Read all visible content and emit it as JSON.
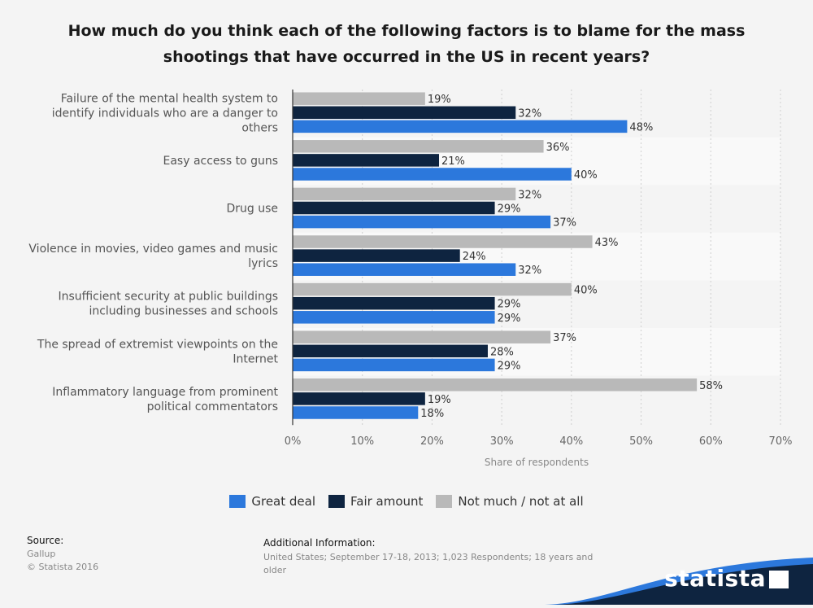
{
  "title": "How much do you think each of the following factors is to blame for the mass shootings that have occurred in the US in recent years?",
  "chart_data": {
    "type": "bar",
    "orientation": "horizontal",
    "categories": [
      "Failure of the mental health system to identify individuals who are a danger to others",
      "Easy access to guns",
      "Drug use",
      "Violence in movies, video games and music lyrics",
      "Insufficient security at public buildings including businesses and schools",
      "The spread of extremist viewpoints on the Internet",
      "Inflammatory language from prominent political commentators"
    ],
    "category_lines": [
      [
        "Failure of the mental health system to",
        "identify individuals who are a danger to",
        "others"
      ],
      [
        "Easy access to guns"
      ],
      [
        "Drug use"
      ],
      [
        "Violence in movies, video games and music",
        "lyrics"
      ],
      [
        "Insufficient security at public buildings",
        "including businesses and schools"
      ],
      [
        "The spread of extremist viewpoints on the",
        "Internet"
      ],
      [
        "Inflammatory language from prominent",
        "political commentators"
      ]
    ],
    "series": [
      {
        "name": "Not much / not at all",
        "color": "#b9b9b9",
        "values": [
          19,
          36,
          32,
          43,
          40,
          37,
          58
        ]
      },
      {
        "name": "Fair amount",
        "color": "#0e2440",
        "values": [
          32,
          21,
          29,
          24,
          29,
          28,
          19
        ]
      },
      {
        "name": "Great deal",
        "color": "#2c78dc",
        "values": [
          48,
          40,
          37,
          32,
          29,
          29,
          18
        ]
      }
    ],
    "value_suffix": "%",
    "xlabel": "Share of respondents",
    "xlim": [
      0,
      70
    ],
    "xticks": [
      0,
      10,
      20,
      30,
      40,
      50,
      60,
      70
    ],
    "xtick_labels": [
      "0%",
      "10%",
      "20%",
      "30%",
      "40%",
      "50%",
      "60%",
      "70%"
    ],
    "grid": true,
    "legend_position": "bottom"
  },
  "legend": [
    {
      "name": "Great deal",
      "color": "#2c78dc"
    },
    {
      "name": "Fair amount",
      "color": "#0e2440"
    },
    {
      "name": "Not much / not at all",
      "color": "#b9b9b9"
    }
  ],
  "footer": {
    "source_label": "Source:",
    "source_lines": [
      "Gallup",
      "© Statista 2016"
    ],
    "info_label": "Additional Information:",
    "info_lines": [
      "United States; September 17-18, 2013; 1,023 Respondents; 18 years and",
      "older"
    ]
  },
  "brand": {
    "name": "statista",
    "dark_color": "#0e2440",
    "accent_color": "#2c78dc"
  }
}
